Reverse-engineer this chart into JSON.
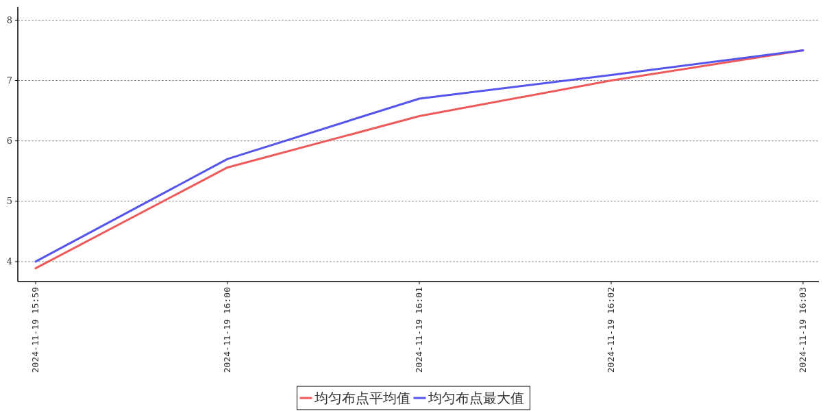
{
  "chart_data": {
    "type": "line",
    "categories": [
      "2024-11-19 15:59",
      "2024-11-19 16:00",
      "2024-11-19 16:01",
      "2024-11-19 16:02",
      "2024-11-19 16:03"
    ],
    "series": [
      {
        "name": "均匀布点平均值",
        "color": "#ee5a5a",
        "values": [
          3.89,
          5.56,
          6.41,
          7.0,
          7.5
        ]
      },
      {
        "name": "均匀布点最大值",
        "color": "#5555ee",
        "values": [
          4.0,
          5.7,
          6.7,
          7.09,
          7.5
        ]
      }
    ],
    "ylim": [
      3.67,
      8.22
    ],
    "yticks": [
      4,
      5,
      6,
      7,
      8
    ],
    "grid": "y",
    "legend": "bottom",
    "marker": "none",
    "line_style": "solid"
  }
}
